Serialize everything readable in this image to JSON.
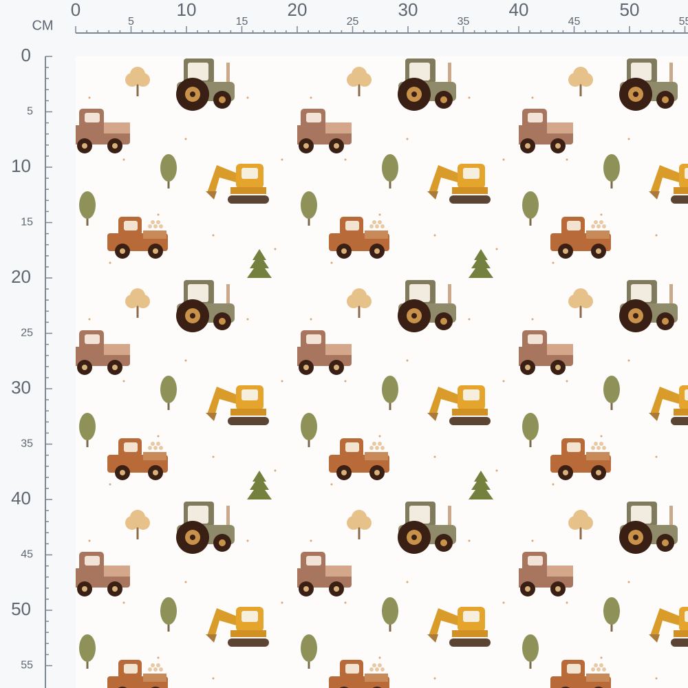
{
  "ruler": {
    "unit": "CM",
    "top": [
      "0",
      "5",
      "10",
      "15",
      "20",
      "25",
      "30",
      "35",
      "40",
      "45",
      "50",
      "55"
    ],
    "left": [
      "0",
      "5",
      "10",
      "15",
      "20",
      "25",
      "30",
      "35",
      "40",
      "45",
      "50",
      "55"
    ]
  }
}
